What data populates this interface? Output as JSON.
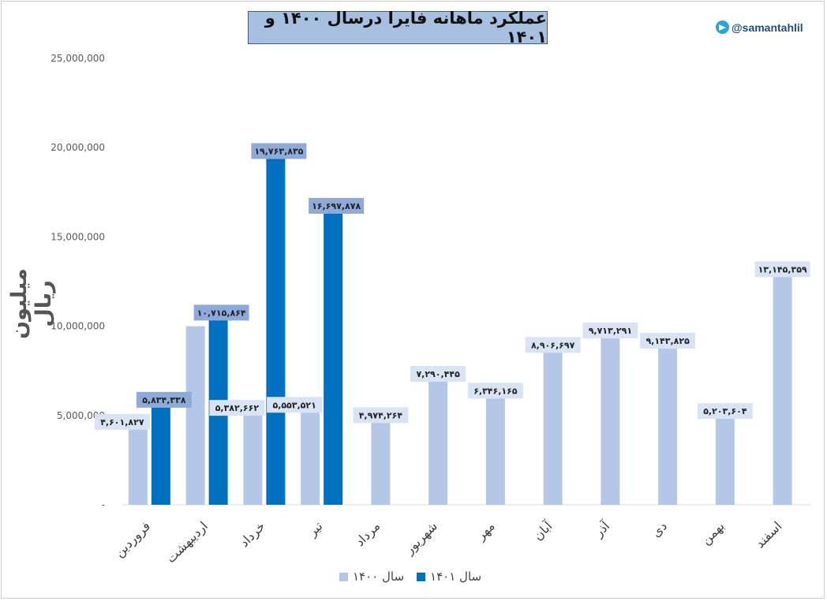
{
  "handle": "@samantahlil",
  "chart_data": {
    "type": "bar",
    "title": "عملکرد ماهانه فایرا درسال ۱۴۰۰ و ۱۴۰۱",
    "ylabel": "میلیون ریال",
    "ylim": [
      0,
      25000000
    ],
    "yticks": [
      0,
      5000000,
      10000000,
      15000000,
      20000000,
      25000000
    ],
    "ytick_labels": [
      "-",
      "5,000,000",
      "10,000,000",
      "15,000,000",
      "20,000,000",
      "25,000,000"
    ],
    "categories": [
      "فروردین",
      "اردیبهشت",
      "خرداد",
      "تیر",
      "مرداد",
      "شهریور",
      "مهر",
      "آبان",
      "آذر",
      "دی",
      "بهمن",
      "اسفند"
    ],
    "series": [
      {
        "name": "سال ۱۴۰۰",
        "color": "#b4c7e7",
        "label_bg": "#dae3f3",
        "values": [
          4601827,
          10000000,
          5382662,
          5553521,
          4974264,
          7290445,
          6346165,
          8906697,
          9713291,
          9143825,
          5203604,
          13145359
        ],
        "labels": [
          "۴,۶۰۱,۸۲۷",
          "",
          "۵,۳۸۲,۶۶۲",
          "۵,۵۵۳,۵۲۱",
          "۴,۹۷۴,۲۶۴",
          "۷,۲۹۰,۴۴۵",
          "۶,۳۴۶,۱۶۵",
          "۸,۹۰۶,۶۹۷",
          "۹,۷۱۳,۲۹۱",
          "۹,۱۴۳,۸۲۵",
          "۵,۲۰۳,۶۰۴",
          "۱۳,۱۴۵,۳۵۹"
        ]
      },
      {
        "name": "سال ۱۴۰۱",
        "color": "#0070c0",
        "label_bg": "#8eaadb",
        "values": [
          5834338,
          10715864,
          19763835,
          16697878,
          null,
          null,
          null,
          null,
          null,
          null,
          null,
          null
        ],
        "labels": [
          "۵,۸۳۴,۳۳۸",
          "۱۰,۷۱۵,۸۶۴",
          "۱۹,۷۶۳,۸۳۵",
          "۱۶,۶۹۷,۸۷۸",
          "",
          "",
          "",
          "",
          "",
          "",
          "",
          ""
        ]
      }
    ],
    "legend": "bottom"
  }
}
